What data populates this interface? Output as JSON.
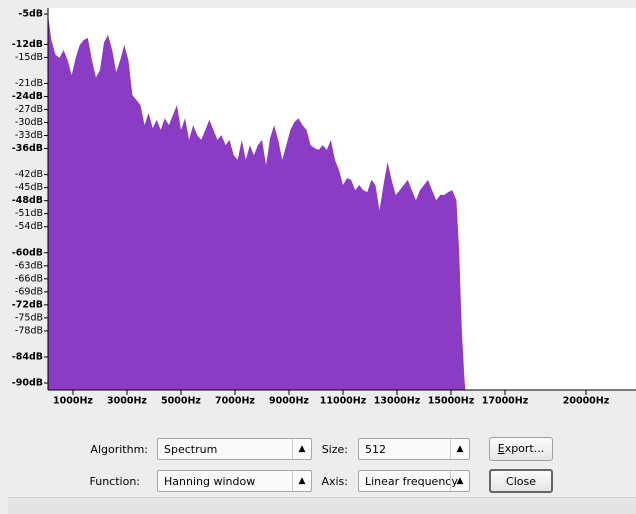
{
  "chart_data": {
    "type": "area",
    "color": "#8a3dc4",
    "x": [
      50,
      200,
      350,
      500,
      650,
      800,
      950,
      1100,
      1250,
      1400,
      1550,
      1700,
      1850,
      2000,
      2150,
      2300,
      2450,
      2600,
      2750,
      2900,
      3050,
      3200,
      3350,
      3500,
      3650,
      3800,
      3950,
      4100,
      4250,
      4400,
      4550,
      4700,
      4850,
      5000,
      5150,
      5300,
      5450,
      5600,
      5750,
      5900,
      6050,
      6200,
      6350,
      6500,
      6650,
      6800,
      6950,
      7100,
      7250,
      7400,
      7550,
      7700,
      7850,
      8000,
      8150,
      8300,
      8450,
      8600,
      8750,
      8900,
      9050,
      9200,
      9350,
      9500,
      9650,
      9800,
      9950,
      10100,
      10250,
      10400,
      10550,
      10700,
      10850,
      11000,
      11150,
      11300,
      11450,
      11600,
      11750,
      11900,
      12050,
      12200,
      12350,
      12500,
      12650,
      12800,
      12950,
      13100,
      13250,
      13400,
      13550,
      13700,
      13850,
      14000,
      14150,
      14300,
      14450,
      14600,
      14750,
      14900,
      15050,
      15200,
      15300,
      15400,
      15500,
      15550
    ],
    "values": [
      -4.1,
      -11,
      -14.4,
      -15.1,
      -13.3,
      -15.6,
      -19.1,
      -15.1,
      -12.1,
      -11,
      -10.5,
      -15.6,
      -19.6,
      -17.9,
      -11.5,
      -9.8,
      -13.3,
      -18.4,
      -15.6,
      -12.1,
      -15.6,
      -23.7,
      -24.8,
      -26,
      -30.6,
      -27.8,
      -31.3,
      -29.4,
      -31.7,
      -29,
      -30.6,
      -28.3,
      -26,
      -31.7,
      -29,
      -34,
      -30.6,
      -32.9,
      -34,
      -31.7,
      -29.4,
      -31.7,
      -34,
      -32.9,
      -35.2,
      -34,
      -37.5,
      -38.6,
      -34,
      -38.6,
      -35.2,
      -37.5,
      -35.2,
      -34,
      -39.8,
      -33.6,
      -30.6,
      -34,
      -38.6,
      -35.2,
      -31.7,
      -29.9,
      -29,
      -30.6,
      -31.7,
      -35.2,
      -35.9,
      -36.3,
      -35.2,
      -36.3,
      -34,
      -38.6,
      -40.9,
      -44.4,
      -42.8,
      -43.2,
      -45.6,
      -44.4,
      -45.6,
      -46,
      -43.2,
      -44.4,
      -50.2,
      -44.4,
      -39.1,
      -43.2,
      -46.7,
      -45.6,
      -44.4,
      -43.2,
      -45.6,
      -47.9,
      -45.6,
      -44.4,
      -43.2,
      -45.6,
      -47.9,
      -46.7,
      -46.7,
      -46,
      -45.6,
      -47.9,
      -59.4,
      -77.8,
      -89.3,
      -93
    ],
    "xlim": [
      0,
      22050
    ],
    "ylim": [
      -90,
      -5
    ],
    "xticks": [
      {
        "value": 1000,
        "label": "1000Hz"
      },
      {
        "value": 3000,
        "label": "3000Hz"
      },
      {
        "value": 5000,
        "label": "5000Hz"
      },
      {
        "value": 7000,
        "label": "7000Hz"
      },
      {
        "value": 9000,
        "label": "9000Hz"
      },
      {
        "value": 11000,
        "label": "11000Hz"
      },
      {
        "value": 13000,
        "label": "13000Hz"
      },
      {
        "value": 15000,
        "label": "15000Hz"
      },
      {
        "value": 17000,
        "label": "17000Hz"
      },
      {
        "value": 20000,
        "label": "20000Hz"
      }
    ],
    "yticks": [
      {
        "value": -5,
        "label": "-5dB"
      },
      {
        "value": -12,
        "label": "-12dB"
      },
      {
        "value": -15,
        "label": "-15dB"
      },
      {
        "value": -21,
        "label": "-21dB"
      },
      {
        "value": -24,
        "label": "-24dB"
      },
      {
        "value": -27,
        "label": "-27dB"
      },
      {
        "value": -30,
        "label": "-30dB"
      },
      {
        "value": -33,
        "label": "-33dB"
      },
      {
        "value": -36,
        "label": "-36dB"
      },
      {
        "value": -42,
        "label": "-42dB"
      },
      {
        "value": -45,
        "label": "-45dB"
      },
      {
        "value": -48,
        "label": "-48dB"
      },
      {
        "value": -51,
        "label": "-51dB"
      },
      {
        "value": -54,
        "label": "-54dB"
      },
      {
        "value": -60,
        "label": "-60dB"
      },
      {
        "value": -63,
        "label": "-63dB"
      },
      {
        "value": -66,
        "label": "-66dB"
      },
      {
        "value": -69,
        "label": "-69dB"
      },
      {
        "value": -72,
        "label": "-72dB"
      },
      {
        "value": -75,
        "label": "-75dB"
      },
      {
        "value": -78,
        "label": "-78dB"
      },
      {
        "value": -84,
        "label": "-84dB"
      },
      {
        "value": -90,
        "label": "-90dB"
      }
    ],
    "major_yticks": [
      -5,
      -12,
      -24,
      -36,
      -48,
      -60,
      -72,
      -84,
      -90
    ]
  },
  "controls": {
    "algorithm_label": "Algorithm:",
    "algorithm": "Spectrum",
    "size_label": "Size:",
    "size": "512",
    "export": "Export...",
    "function_label": "Function:",
    "function": "Hanning window",
    "axis_label": "Axis:",
    "axis": "Linear frequency",
    "close": "Close"
  }
}
